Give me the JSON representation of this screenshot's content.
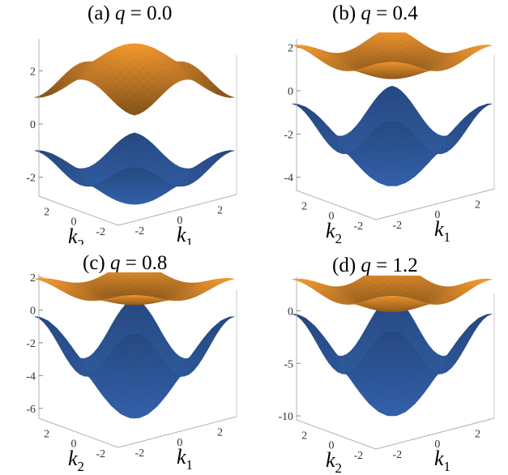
{
  "chart_data": [
    {
      "type": "surface3d",
      "title_label": "(a)",
      "title_var": "q",
      "title_value": "= 0.0",
      "q": 0.0,
      "xlabel_main": "k",
      "xlabel_sub": "1",
      "ylabel_main": "k",
      "ylabel_sub": "2",
      "k1_ticks": [
        "-2",
        "0",
        "2"
      ],
      "k2_ticks": [
        "2",
        "0",
        "-2"
      ],
      "z_ticks": [
        "2",
        "0",
        "-2"
      ],
      "zlim": [
        -3.2,
        3.2
      ],
      "bands": [
        {
          "name": "upper",
          "color": "#f0962e",
          "min": 1.0,
          "max": 3.0
        },
        {
          "name": "lower",
          "color": "#3a6fc4",
          "min": -3.0,
          "max": -1.0
        }
      ]
    },
    {
      "type": "surface3d",
      "title_label": "(b)",
      "title_var": "q",
      "title_value": "= 0.4",
      "q": 0.4,
      "xlabel_main": "k",
      "xlabel_sub": "1",
      "ylabel_main": "k",
      "ylabel_sub": "2",
      "k1_ticks": [
        "-2",
        "0",
        "2"
      ],
      "k2_ticks": [
        "2",
        "0",
        "-2"
      ],
      "z_ticks": [
        "2",
        "0",
        "-2",
        "-4"
      ],
      "zlim": [
        -4.8,
        2.4
      ],
      "bands": [
        {
          "name": "upper",
          "color": "#f0962e",
          "min": 0.6,
          "max": 2.1
        },
        {
          "name": "lower",
          "color": "#3a6fc4",
          "min": -4.4,
          "max": -0.6
        }
      ]
    },
    {
      "type": "surface3d",
      "title_label": "(c)",
      "title_var": "q",
      "title_value": "= 0.8",
      "q": 0.8,
      "xlabel_main": "k",
      "xlabel_sub": "1",
      "ylabel_main": "k",
      "ylabel_sub": "2",
      "k1_ticks": [
        "-2",
        "0",
        "2"
      ],
      "k2_ticks": [
        "2",
        "0",
        "-2"
      ],
      "z_ticks": [
        "2",
        "0",
        "-2",
        "-4",
        "-6"
      ],
      "zlim": [
        -7.0,
        2.2
      ],
      "bands": [
        {
          "name": "upper",
          "color": "#f0962e",
          "min": 0.4,
          "max": 1.9
        },
        {
          "name": "lower",
          "color": "#3a6fc4",
          "min": -6.6,
          "max": -0.4
        }
      ]
    },
    {
      "type": "surface3d",
      "title_label": "(d)",
      "title_var": "q",
      "title_value": "= 1.2",
      "q": 1.2,
      "xlabel_main": "k",
      "xlabel_sub": "1",
      "ylabel_main": "k",
      "ylabel_sub": "2",
      "k1_ticks": [
        "-2",
        "0",
        "2"
      ],
      "k2_ticks": [
        "2",
        "0",
        "-2"
      ],
      "z_ticks": [
        "0",
        "-5",
        "-10"
      ],
      "zlim": [
        -11.0,
        3.2
      ],
      "bands": [
        {
          "name": "upper",
          "color": "#f0962e",
          "min": 0.0,
          "max": 3.0
        },
        {
          "name": "lower",
          "color": "#3a6fc4",
          "min": -10.0,
          "max": -0.3
        }
      ]
    }
  ]
}
